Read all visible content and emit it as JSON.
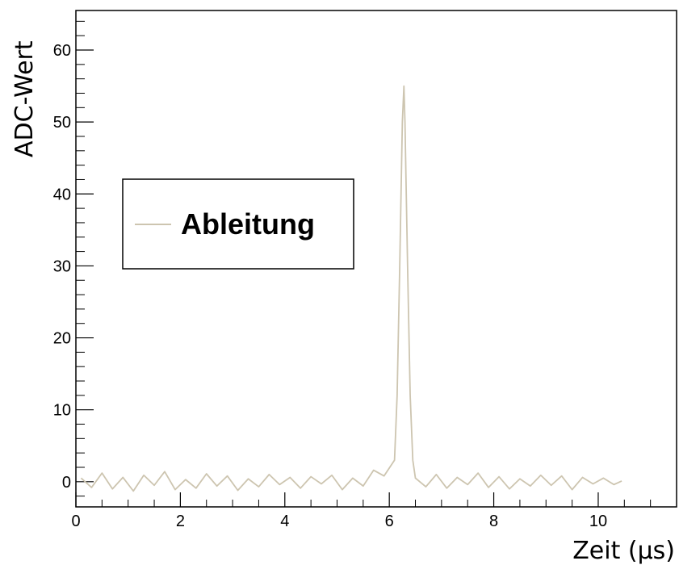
{
  "chart_data": {
    "type": "line",
    "title": "",
    "xlabel": "Zeit (µs)",
    "ylabel": "ADC-Wert",
    "xlim": [
      0,
      11.5
    ],
    "ylim": [
      -3.5,
      65.5
    ],
    "x_ticks": [
      0,
      2,
      4,
      6,
      8,
      10
    ],
    "y_ticks": [
      0,
      10,
      20,
      30,
      40,
      50,
      60
    ],
    "x_tick_labels": [
      "0",
      "2",
      "4",
      "6",
      "8",
      "10"
    ],
    "y_tick_labels": [
      "0",
      "10",
      "20",
      "30",
      "40",
      "50",
      "60"
    ],
    "grid": false,
    "legend": {
      "position": "upper-left",
      "entries": [
        "Ableitung"
      ]
    },
    "series": [
      {
        "name": "Ableitung",
        "color": "#cdc5b0",
        "x": [
          0.1,
          0.3,
          0.5,
          0.7,
          0.9,
          1.1,
          1.3,
          1.5,
          1.7,
          1.9,
          2.1,
          2.3,
          2.5,
          2.7,
          2.9,
          3.1,
          3.3,
          3.5,
          3.7,
          3.9,
          4.1,
          4.3,
          4.5,
          4.7,
          4.9,
          5.1,
          5.3,
          5.5,
          5.7,
          5.9,
          6.1,
          6.15,
          6.2,
          6.25,
          6.28,
          6.3,
          6.35,
          6.4,
          6.45,
          6.5,
          6.7,
          6.9,
          7.1,
          7.3,
          7.5,
          7.7,
          7.9,
          8.1,
          8.3,
          8.5,
          8.7,
          8.9,
          9.1,
          9.3,
          9.5,
          9.7,
          9.9,
          10.1,
          10.3,
          10.45
        ],
        "y": [
          0.5,
          -0.8,
          1.2,
          -1.0,
          0.6,
          -1.3,
          0.9,
          -0.5,
          1.4,
          -1.1,
          0.3,
          -0.9,
          1.1,
          -0.6,
          0.8,
          -1.2,
          0.4,
          -0.7,
          1.0,
          -0.4,
          0.6,
          -0.9,
          0.7,
          -0.3,
          0.9,
          -1.1,
          0.5,
          -0.6,
          1.6,
          0.8,
          3.0,
          12.0,
          30.0,
          50.0,
          55.0,
          50.0,
          30.0,
          12.0,
          3.0,
          0.5,
          -0.7,
          1.0,
          -0.9,
          0.6,
          -0.4,
          1.2,
          -0.8,
          0.7,
          -1.0,
          0.4,
          -0.6,
          0.9,
          -0.5,
          0.8,
          -1.1,
          0.6,
          -0.3,
          0.5,
          -0.4,
          0.1
        ]
      }
    ]
  }
}
